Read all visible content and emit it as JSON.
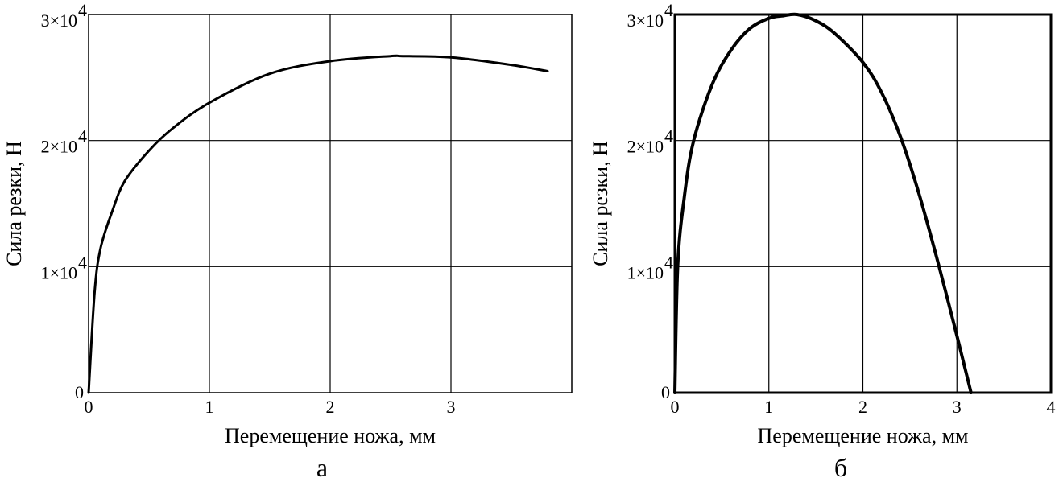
{
  "chart_data": [
    {
      "type": "line",
      "panel_label": "а",
      "xlabel": "Перемещение ножа, мм",
      "ylabel": "Сила резки, Н",
      "xlim": [
        0,
        4
      ],
      "ylim": [
        0,
        30000
      ],
      "x_ticks": [
        {
          "value": 0,
          "label": "0"
        },
        {
          "value": 1,
          "label": "1"
        },
        {
          "value": 2,
          "label": "2"
        },
        {
          "value": 3,
          "label": "3"
        }
      ],
      "y_ticks": [
        {
          "value": 0,
          "label": "0"
        },
        {
          "value": 10000,
          "label": "1×10",
          "exp": "4"
        },
        {
          "value": 20000,
          "label": "2×10",
          "exp": "4"
        },
        {
          "value": 30000,
          "label": "3×10",
          "exp": "4"
        }
      ],
      "grid": true,
      "series": [
        {
          "x": [
            0,
            0.05,
            0.1,
            0.2,
            0.3,
            0.5,
            0.7,
            1.0,
            1.5,
            2.0,
            2.5,
            2.6,
            3.0,
            3.5,
            3.8
          ],
          "y": [
            0,
            8000,
            11500,
            14500,
            16800,
            19200,
            21000,
            23000,
            25300,
            26300,
            26700,
            26700,
            26600,
            26000,
            25500
          ]
        }
      ]
    },
    {
      "type": "line",
      "panel_label": "б",
      "xlabel": "Перемещение ножа, мм",
      "ylabel": "Сила резки, Н",
      "xlim": [
        0,
        4
      ],
      "ylim": [
        0,
        30000
      ],
      "x_ticks": [
        {
          "value": 0,
          "label": "0"
        },
        {
          "value": 1,
          "label": "1"
        },
        {
          "value": 2,
          "label": "2"
        },
        {
          "value": 3,
          "label": "3"
        },
        {
          "value": 4,
          "label": "4"
        }
      ],
      "y_ticks": [
        {
          "value": 0,
          "label": "0"
        },
        {
          "value": 10000,
          "label": "1×10",
          "exp": "4"
        },
        {
          "value": 20000,
          "label": "2×10",
          "exp": "4"
        },
        {
          "value": 30000,
          "label": "3×10",
          "exp": "4"
        }
      ],
      "grid": true,
      "series": [
        {
          "x": [
            0,
            0.03,
            0.1,
            0.2,
            0.4,
            0.6,
            0.8,
            1.0,
            1.15,
            1.3,
            1.5,
            1.7,
            2.0,
            2.2,
            2.4,
            2.6,
            2.8,
            3.0,
            3.15
          ],
          "y": [
            0,
            10000,
            15500,
            20000,
            24500,
            27200,
            28900,
            29700,
            29900,
            30000,
            29500,
            28500,
            26200,
            23800,
            20300,
            15700,
            10300,
            4500,
            0
          ]
        }
      ]
    }
  ]
}
